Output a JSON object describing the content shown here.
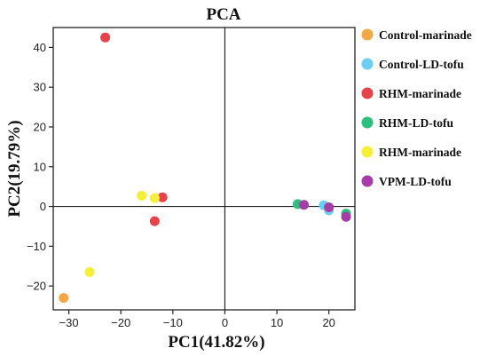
{
  "chart_data": {
    "type": "scatter",
    "title": "PCA",
    "xlabel": "PC1(41.82%)",
    "ylabel": "PC2(19.79%)",
    "xlim": [
      -33,
      25
    ],
    "ylim": [
      -26,
      45
    ],
    "xticks": [
      -30,
      -20,
      -10,
      0,
      10,
      20
    ],
    "yticks": [
      -20,
      -10,
      0,
      10,
      20,
      30,
      40
    ],
    "grid": false,
    "reference_lines": {
      "x": 0,
      "y": 0
    },
    "legend_position": "right",
    "series": [
      {
        "name": "Control-marinade",
        "color": "#F0A848",
        "points": [
          [
            -31,
            -23
          ]
        ]
      },
      {
        "name": "Control-LD-tofu",
        "color": "#6CCFF0",
        "points": [
          [
            19,
            0.3
          ],
          [
            20,
            -1
          ]
        ]
      },
      {
        "name": "RHM-marinade",
        "color": "#E8434A",
        "points": [
          [
            -23,
            42.5
          ],
          [
            -12,
            2.3
          ],
          [
            -13.5,
            -3.7
          ]
        ]
      },
      {
        "name": "RHM-LD-tofu",
        "color": "#2EBE7E",
        "points": [
          [
            14,
            0.6
          ],
          [
            23.3,
            -1.8
          ]
        ]
      },
      {
        "name": "RHM-marinade",
        "color": "#F4F03A",
        "points": [
          [
            -16,
            2.7
          ],
          [
            -13.5,
            2.1
          ],
          [
            -26,
            -16.5
          ]
        ]
      },
      {
        "name": "VPM-LD-tofu",
        "color": "#A63CA6",
        "points": [
          [
            15.2,
            0.4
          ],
          [
            20,
            -0.2
          ],
          [
            23.3,
            -2.6
          ]
        ]
      }
    ]
  }
}
